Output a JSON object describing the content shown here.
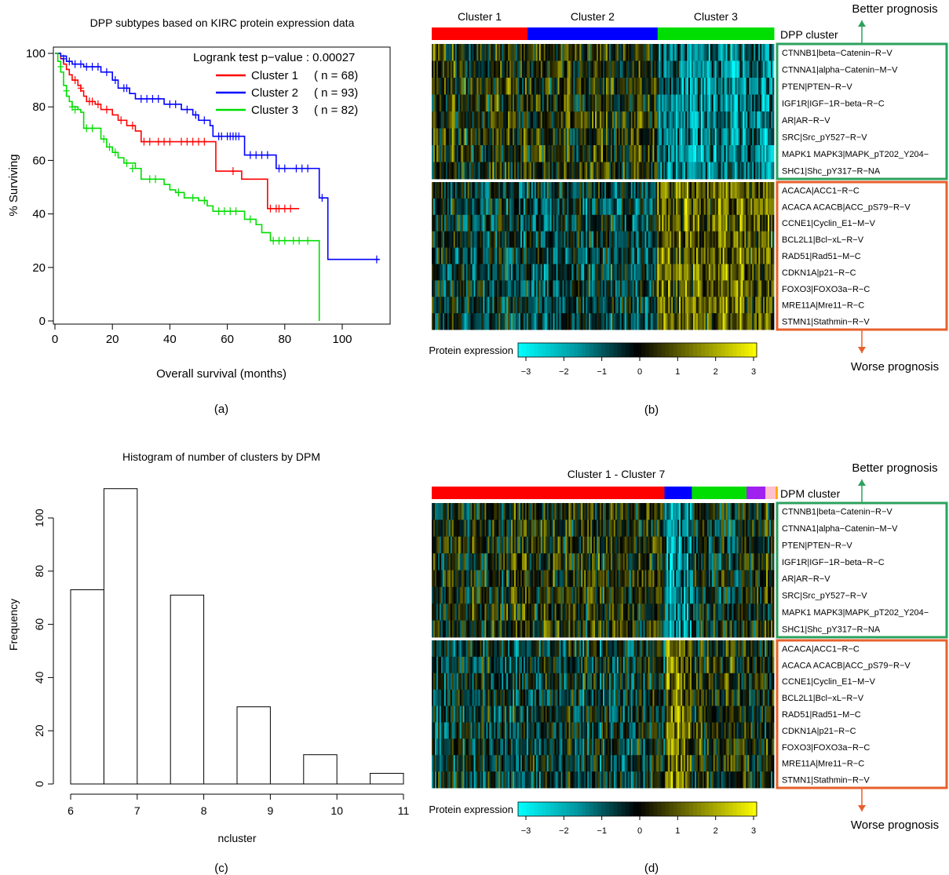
{
  "chart_data": [
    {
      "id": "a",
      "type": "line",
      "subtype": "kaplan-meier",
      "title": "DPP subtypes based on KIRC protein expression data",
      "xlabel": "Overall survival (months)",
      "ylabel": "% Surviving",
      "xlim": [
        0,
        115
      ],
      "ylim": [
        0,
        100
      ],
      "xticks": [
        0,
        20,
        40,
        60,
        80,
        100
      ],
      "yticks": [
        0,
        20,
        40,
        60,
        80,
        100
      ],
      "annotation": "Logrank test p−value : 0.00027",
      "panel_label": "(a)",
      "series": [
        {
          "name": "Cluster 1",
          "n_label": "( n = 68)",
          "color": "#ff0000",
          "steps": [
            [
              0,
              100
            ],
            [
              2,
              98
            ],
            [
              3,
              96
            ],
            [
              4,
              94
            ],
            [
              5,
              92
            ],
            [
              6,
              90
            ],
            [
              8,
              88
            ],
            [
              9,
              86
            ],
            [
              10,
              84
            ],
            [
              11,
              82
            ],
            [
              14,
              81
            ],
            [
              16,
              79
            ],
            [
              20,
              77
            ],
            [
              22,
              75
            ],
            [
              25,
              73
            ],
            [
              28,
              71
            ],
            [
              30,
              67
            ],
            [
              55,
              67
            ],
            [
              56,
              56
            ],
            [
              64,
              56
            ],
            [
              65,
              53
            ],
            [
              73,
              53
            ],
            [
              74,
              42
            ],
            [
              85,
              42
            ]
          ],
          "censor": [
            [
              7,
              90
            ],
            [
              9,
              87
            ],
            [
              12,
              82
            ],
            [
              13,
              82
            ],
            [
              15,
              81
            ],
            [
              18,
              79
            ],
            [
              23,
              75
            ],
            [
              27,
              73
            ],
            [
              31,
              67
            ],
            [
              33,
              67
            ],
            [
              36,
              67
            ],
            [
              38,
              67
            ],
            [
              40,
              67
            ],
            [
              44,
              67
            ],
            [
              46,
              67
            ],
            [
              48,
              67
            ],
            [
              50,
              67
            ],
            [
              52,
              67
            ],
            [
              62,
              56
            ],
            [
              75,
              42
            ],
            [
              77,
              42
            ],
            [
              78,
              42
            ],
            [
              80,
              42
            ],
            [
              82,
              42
            ]
          ]
        },
        {
          "name": "Cluster 2",
          "n_label": "( n = 93)",
          "color": "#0000ff",
          "steps": [
            [
              0,
              100
            ],
            [
              2,
              99
            ],
            [
              4,
              97
            ],
            [
              6,
              96
            ],
            [
              10,
              95
            ],
            [
              16,
              93
            ],
            [
              20,
              90
            ],
            [
              22,
              87
            ],
            [
              26,
              85
            ],
            [
              28,
              83
            ],
            [
              38,
              81
            ],
            [
              44,
              79
            ],
            [
              48,
              77
            ],
            [
              50,
              75
            ],
            [
              54,
              73
            ],
            [
              55,
              69
            ],
            [
              65,
              69
            ],
            [
              66,
              62
            ],
            [
              76,
              62
            ],
            [
              77,
              57
            ],
            [
              82,
              57
            ],
            [
              92,
              46
            ],
            [
              94,
              46
            ],
            [
              95,
              23
            ],
            [
              113,
              23
            ]
          ],
          "censor": [
            [
              3,
              98
            ],
            [
              5,
              97
            ],
            [
              7,
              96
            ],
            [
              9,
              96
            ],
            [
              11,
              95
            ],
            [
              13,
              95
            ],
            [
              15,
              95
            ],
            [
              18,
              93
            ],
            [
              21,
              90
            ],
            [
              24,
              87
            ],
            [
              25,
              87
            ],
            [
              30,
              83
            ],
            [
              32,
              83
            ],
            [
              34,
              83
            ],
            [
              36,
              83
            ],
            [
              40,
              81
            ],
            [
              42,
              81
            ],
            [
              46,
              79
            ],
            [
              49,
              77
            ],
            [
              52,
              75
            ],
            [
              57,
              69
            ],
            [
              58,
              69
            ],
            [
              60,
              69
            ],
            [
              61,
              69
            ],
            [
              62,
              69
            ],
            [
              63,
              69
            ],
            [
              64,
              69
            ],
            [
              68,
              62
            ],
            [
              70,
              62
            ],
            [
              72,
              62
            ],
            [
              74,
              62
            ],
            [
              78,
              57
            ],
            [
              80,
              57
            ],
            [
              84,
              57
            ],
            [
              86,
              57
            ],
            [
              88,
              57
            ],
            [
              93,
              46
            ],
            [
              112,
              23
            ]
          ]
        },
        {
          "name": "Cluster 3",
          "n_label": "( n = 82)",
          "color": "#00dd00",
          "steps": [
            [
              0,
              100
            ],
            [
              1,
              97
            ],
            [
              2,
              93
            ],
            [
              3,
              88
            ],
            [
              4,
              84
            ],
            [
              5,
              82
            ],
            [
              6,
              80
            ],
            [
              8,
              79
            ],
            [
              9,
              78
            ],
            [
              10,
              72
            ],
            [
              15,
              72
            ],
            [
              16,
              68
            ],
            [
              18,
              65
            ],
            [
              20,
              63
            ],
            [
              22,
              61
            ],
            [
              24,
              59
            ],
            [
              28,
              57
            ],
            [
              30,
              53
            ],
            [
              38,
              51
            ],
            [
              40,
              49
            ],
            [
              42,
              48
            ],
            [
              45,
              46
            ],
            [
              50,
              45
            ],
            [
              53,
              43
            ],
            [
              55,
              41
            ],
            [
              65,
              41
            ],
            [
              66,
              38
            ],
            [
              70,
              36
            ],
            [
              72,
              33
            ],
            [
              75,
              30
            ],
            [
              92,
              30
            ],
            [
              92,
              0
            ]
          ],
          "censor": [
            [
              2,
              95
            ],
            [
              4,
              86
            ],
            [
              6,
              80
            ],
            [
              7,
              79
            ],
            [
              11,
              72
            ],
            [
              13,
              72
            ],
            [
              17,
              68
            ],
            [
              19,
              65
            ],
            [
              21,
              63
            ],
            [
              25,
              59
            ],
            [
              27,
              57
            ],
            [
              33,
              53
            ],
            [
              35,
              53
            ],
            [
              43,
              48
            ],
            [
              48,
              46
            ],
            [
              52,
              45
            ],
            [
              57,
              41
            ],
            [
              59,
              41
            ],
            [
              61,
              41
            ],
            [
              63,
              41
            ],
            [
              68,
              38
            ],
            [
              76,
              30
            ],
            [
              78,
              30
            ],
            [
              80,
              30
            ],
            [
              83,
              30
            ],
            [
              85,
              30
            ],
            [
              88,
              30
            ]
          ]
        }
      ]
    },
    {
      "id": "b",
      "type": "heatmap",
      "panel_label": "(b)",
      "cluster_labels": [
        "Cluster 1",
        "Cluster 2",
        "Cluster 3"
      ],
      "cluster_fractions": [
        0.28,
        0.38,
        0.34
      ],
      "cluster_colors": [
        "#ff0000",
        "#0000ff",
        "#00dd00"
      ],
      "colorbar_title": "DPP cluster",
      "seed": 7
    },
    {
      "id": "c",
      "type": "bar",
      "subtype": "histogram",
      "title": "Histogram of number of clusters by DPM",
      "xlabel": "ncluster",
      "ylabel": "Frequency",
      "xlim": [
        6,
        11
      ],
      "ylim": [
        0,
        115
      ],
      "xticks": [
        6,
        7,
        8,
        9,
        10,
        11
      ],
      "yticks": [
        0,
        20,
        40,
        60,
        80,
        100
      ],
      "panel_label": "(c)",
      "bins": [
        {
          "from": 6.0,
          "to": 6.5,
          "value": 73
        },
        {
          "from": 6.5,
          "to": 7.0,
          "value": 111
        },
        {
          "from": 7.0,
          "to": 7.5,
          "value": 0
        },
        {
          "from": 7.5,
          "to": 8.0,
          "value": 71
        },
        {
          "from": 8.0,
          "to": 8.5,
          "value": 0
        },
        {
          "from": 8.5,
          "to": 9.0,
          "value": 29
        },
        {
          "from": 9.0,
          "to": 9.5,
          "value": 0
        },
        {
          "from": 9.5,
          "to": 10.0,
          "value": 11
        },
        {
          "from": 10.0,
          "to": 10.5,
          "value": 0
        },
        {
          "from": 10.5,
          "to": 11.0,
          "value": 4
        }
      ]
    },
    {
      "id": "d",
      "type": "heatmap",
      "panel_label": "(d)",
      "title": "Cluster 1 - Cluster 7",
      "cluster_fractions": [
        0.68,
        0.08,
        0.16,
        0.055,
        0.03,
        0.005
      ],
      "cluster_colors": [
        "#ff0000",
        "#0000ff",
        "#00dd00",
        "#a020f0",
        "#ffc0cb",
        "#ffa500"
      ],
      "colorbar_title": "DPM cluster",
      "seed": 23
    }
  ],
  "genes_better": [
    "CTNNB1|beta−Catenin−R−V",
    "CTNNA1|alpha−Catenin−M−V",
    "PTEN|PTEN−R−V",
    "IGF1R|IGF−1R−beta−R−C",
    "AR|AR−R−V",
    "SRC|Src_pY527−R−V",
    "MAPK1 MAPK3|MAPK_pT202_Y204−",
    "SHC1|Shc_pY317−R−NA"
  ],
  "genes_worse": [
    "ACACA|ACC1−R−C",
    "ACACA ACACB|ACC_pS79−R−V",
    "CCNE1|Cyclin_E1−M−V",
    "BCL2L1|Bcl−xL−R−V",
    "RAD51|Rad51−M−C",
    "CDKN1A|p21−R−C",
    "FOXO3|FOXO3a−R−C",
    "MRE11A|Mre11−R−C",
    "STMN1|Stathmin−R−V"
  ],
  "prognosis": {
    "better": "Better prognosis",
    "worse": "Worse prognosis",
    "better_color": "#2ca25f",
    "worse_color": "#e8602c"
  },
  "colorbar": {
    "title": "Protein expression",
    "ticks": [
      "−3",
      "−2",
      "−1",
      "0",
      "1",
      "2",
      "3"
    ]
  }
}
